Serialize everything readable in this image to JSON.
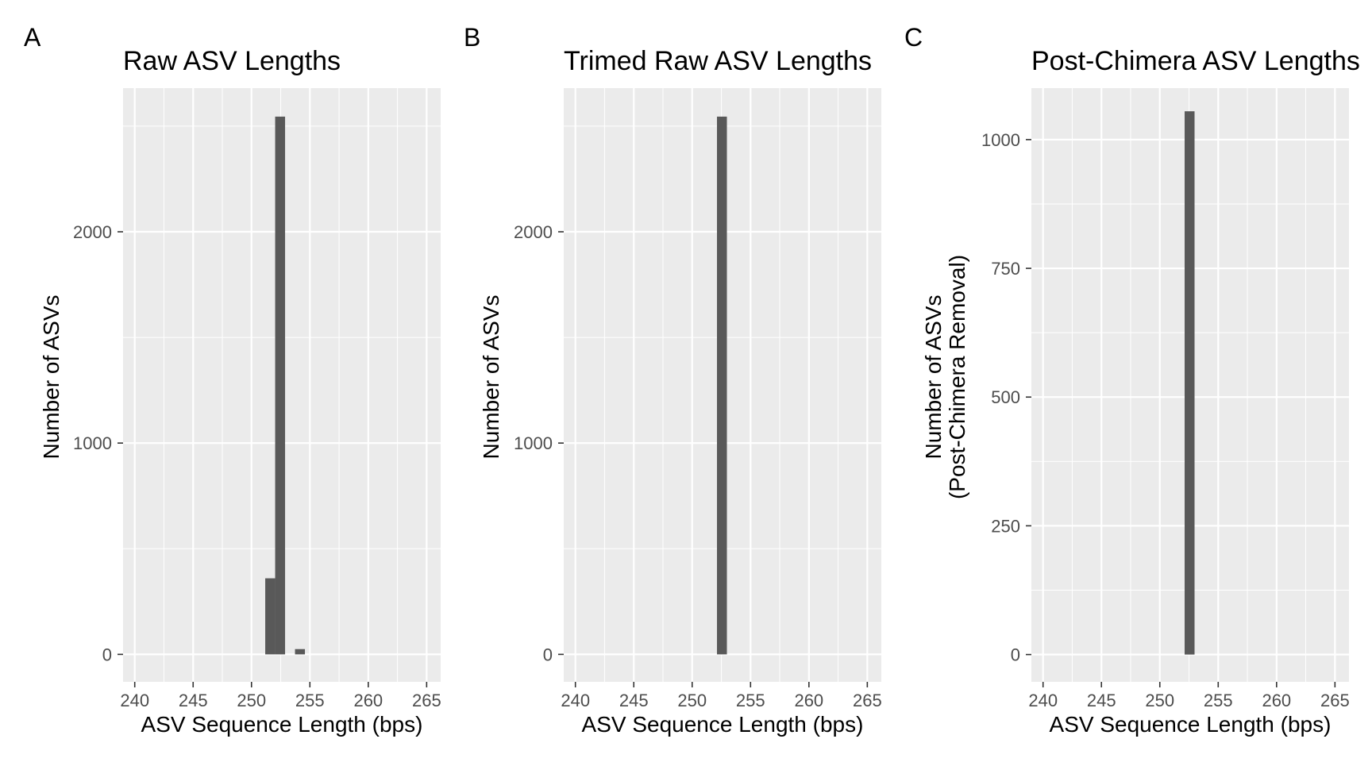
{
  "colors": {
    "panel_background": "#ebebeb",
    "grid_line": "#ffffff",
    "bar_fill": "#595959",
    "tick_text": "#4d4d4d",
    "text": "#000000"
  },
  "chart_data": [
    {
      "type": "bar",
      "panel_label": "A",
      "title": "Raw ASV Lengths",
      "xlabel": "ASV Sequence Length (bps)",
      "ylabel": [
        "Number of ASVs"
      ],
      "xlim": [
        239,
        266.2
      ],
      "ylim": [
        -130,
        2680
      ],
      "xticks": [
        240,
        245,
        250,
        255,
        260,
        265
      ],
      "xtick_labels": [
        "240",
        "245",
        "250",
        "255",
        "260",
        "265"
      ],
      "yticks": [
        0,
        1000,
        2000
      ],
      "ytick_labels": [
        "0",
        "1000",
        "2000"
      ],
      "bin_width": 0.85,
      "x": [
        251.6,
        252.45,
        254.15
      ],
      "values": [
        360,
        2545,
        25
      ],
      "grid": true
    },
    {
      "type": "bar",
      "panel_label": "B",
      "title": "Trimed Raw ASV Lengths",
      "xlabel": "ASV Sequence Length (bps)",
      "ylabel": [
        "Number of ASVs"
      ],
      "xlim": [
        239,
        266.2
      ],
      "ylim": [
        -130,
        2680
      ],
      "xticks": [
        240,
        245,
        250,
        255,
        260,
        265
      ],
      "xtick_labels": [
        "240",
        "245",
        "250",
        "255",
        "260",
        "265"
      ],
      "yticks": [
        0,
        1000,
        2000
      ],
      "ytick_labels": [
        "0",
        "1000",
        "2000"
      ],
      "bin_width": 0.85,
      "x": [
        252.55
      ],
      "values": [
        2545
      ],
      "grid": true
    },
    {
      "type": "bar",
      "panel_label": "C",
      "title": "Post-Chimera ASV Lengths",
      "xlabel": "ASV Sequence Length (bps)",
      "ylabel": [
        "Number of ASVs",
        "(Post-Chimera Removal)"
      ],
      "xlim": [
        239,
        266.2
      ],
      "ylim": [
        -53,
        1100
      ],
      "xticks": [
        240,
        245,
        250,
        255,
        260,
        265
      ],
      "xtick_labels": [
        "240",
        "245",
        "250",
        "255",
        "260",
        "265"
      ],
      "yticks": [
        0,
        250,
        500,
        750,
        1000
      ],
      "ytick_labels": [
        "0",
        "250",
        "500",
        "750",
        "1000"
      ],
      "bin_width": 0.85,
      "x": [
        252.55
      ],
      "values": [
        1055
      ],
      "grid": true
    }
  ]
}
